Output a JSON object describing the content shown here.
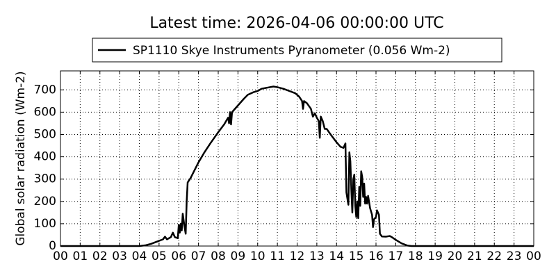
{
  "chart_data": {
    "type": "line",
    "title": "Latest time: 2026-04-06 00:00:00 UTC",
    "ylabel": "Global solar radiation (Wm-2)",
    "x": [
      0,
      4.0,
      4.3,
      4.6,
      4.9,
      5.2,
      5.3,
      5.4,
      5.6,
      5.7,
      5.8,
      5.95,
      6.0,
      6.05,
      6.1,
      6.15,
      6.2,
      6.3,
      6.35,
      6.4,
      6.45,
      6.6,
      6.8,
      7.0,
      7.3,
      7.6,
      8.0,
      8.3,
      8.5,
      8.55,
      8.6,
      8.65,
      8.7,
      9.0,
      9.3,
      9.5,
      9.8,
      10.0,
      10.2,
      10.5,
      10.8,
      11.0,
      11.3,
      11.6,
      11.9,
      12.1,
      12.25,
      12.3,
      12.35,
      12.5,
      12.7,
      12.8,
      12.9,
      13.0,
      13.1,
      13.15,
      13.2,
      13.3,
      13.4,
      13.5,
      13.7,
      14.0,
      14.2,
      14.35,
      14.45,
      14.5,
      14.6,
      14.65,
      14.7,
      14.75,
      14.8,
      14.85,
      14.9,
      14.95,
      15.0,
      15.05,
      15.1,
      15.15,
      15.2,
      15.25,
      15.3,
      15.35,
      15.4,
      15.45,
      15.5,
      15.55,
      15.6,
      15.7,
      15.8,
      15.85,
      15.9,
      16.0,
      16.05,
      16.15,
      16.2,
      16.3,
      16.5,
      16.7,
      16.8,
      17.0,
      17.3,
      17.6,
      17.8,
      24
    ],
    "series": [
      {
        "name": "SP1110 Skye Instruments Pyranometer (0.056 Wm-2)",
        "color": "#000000",
        "values": [
          0,
          0,
          3,
          10,
          20,
          30,
          42,
          30,
          40,
          60,
          40,
          35,
          95,
          60,
          100,
          70,
          145,
          80,
          55,
          200,
          285,
          305,
          340,
          375,
          420,
          460,
          510,
          545,
          575,
          550,
          600,
          545,
          600,
          630,
          660,
          678,
          690,
          695,
          705,
          710,
          715,
          712,
          705,
          695,
          685,
          670,
          650,
          615,
          650,
          640,
          615,
          580,
          595,
          575,
          560,
          485,
          580,
          560,
          525,
          525,
          500,
          465,
          445,
          440,
          460,
          240,
          185,
          420,
          380,
          250,
          150,
          300,
          320,
          180,
          130,
          200,
          125,
          265,
          180,
          335,
          310,
          220,
          280,
          190,
          220,
          190,
          225,
          170,
          140,
          85,
          120,
          130,
          160,
          140,
          55,
          43,
          42,
          45,
          40,
          28,
          12,
          2,
          0,
          0
        ]
      }
    ],
    "xlim": [
      0,
      24
    ],
    "ylim": [
      0,
      785
    ],
    "xticks": [
      {
        "value": 0,
        "label": "00"
      },
      {
        "value": 1,
        "label": "01"
      },
      {
        "value": 2,
        "label": "02"
      },
      {
        "value": 3,
        "label": "03"
      },
      {
        "value": 4,
        "label": "04"
      },
      {
        "value": 5,
        "label": "05"
      },
      {
        "value": 6,
        "label": "06"
      },
      {
        "value": 7,
        "label": "07"
      },
      {
        "value": 8,
        "label": "08"
      },
      {
        "value": 9,
        "label": "09"
      },
      {
        "value": 10,
        "label": "10"
      },
      {
        "value": 11,
        "label": "11"
      },
      {
        "value": 12,
        "label": "12"
      },
      {
        "value": 13,
        "label": "13"
      },
      {
        "value": 14,
        "label": "14"
      },
      {
        "value": 15,
        "label": "15"
      },
      {
        "value": 16,
        "label": "16"
      },
      {
        "value": 17,
        "label": "17"
      },
      {
        "value": 18,
        "label": "18"
      },
      {
        "value": 19,
        "label": "19"
      },
      {
        "value": 20,
        "label": "20"
      },
      {
        "value": 21,
        "label": "21"
      },
      {
        "value": 22,
        "label": "22"
      },
      {
        "value": 23,
        "label": "23"
      },
      {
        "value": 24,
        "label": "00"
      }
    ],
    "yticks": [
      0,
      100,
      200,
      300,
      400,
      500,
      600,
      700
    ],
    "grid": true,
    "legend": "above"
  }
}
